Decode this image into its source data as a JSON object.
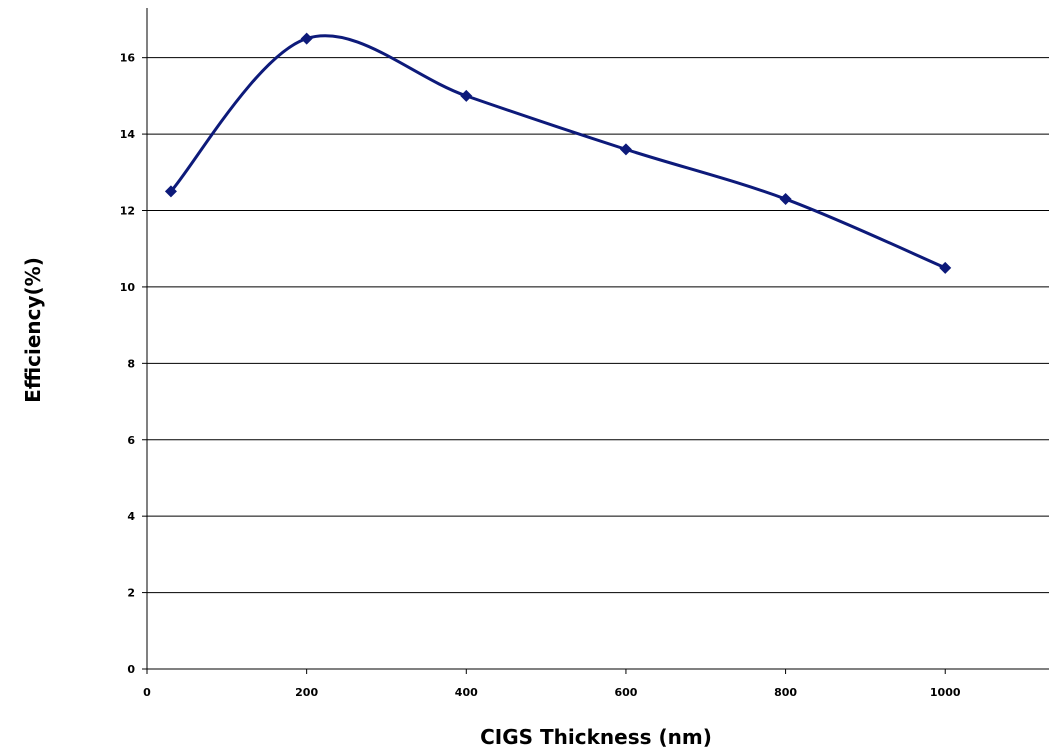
{
  "chart_data": {
    "type": "line",
    "title": "",
    "xlabel": "CIGS Thickness (nm)",
    "ylabel": "Efficiency(%)",
    "x": [
      30,
      200,
      400,
      600,
      800,
      1000
    ],
    "series": [
      {
        "values": [
          12.5,
          16.5,
          15.0,
          13.6,
          12.3,
          10.5
        ]
      }
    ],
    "xlim": [
      0,
      1130
    ],
    "ylim": [
      0,
      17.3
    ],
    "xticks": [
      "0",
      "200",
      "400",
      "600",
      "800",
      "1000"
    ],
    "yticks": [
      "0",
      "2",
      "4",
      "6",
      "8",
      "10",
      "12",
      "14",
      "16"
    ],
    "line_style": "smoothed",
    "marker": "diamond",
    "grid": "horizontal",
    "legend": "none",
    "colors": {
      "series": "#0D1A7A",
      "grid": "#000000",
      "axis": "#000000"
    }
  }
}
